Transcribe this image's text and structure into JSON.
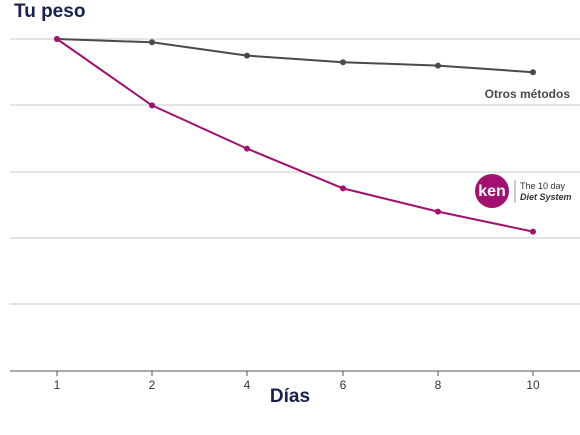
{
  "colors": {
    "title": "#17204f",
    "grid": "#c9c9c9",
    "axis": "#555555",
    "others_series": "#4a4a4a",
    "ken_series": "#a3106f"
  },
  "brand": {
    "logo_text": "ken",
    "line1": "The 10 day",
    "line2": "Diet System"
  },
  "chart_data": {
    "type": "line",
    "title": "Tu peso",
    "xlabel": "Días",
    "ylabel": "",
    "categories": [
      "1",
      "2",
      "4",
      "6",
      "8",
      "10"
    ],
    "ylim": [
      0,
      100
    ],
    "grid": true,
    "series": [
      {
        "name": "Otros métodos",
        "color": "#4a4a4a",
        "values": [
          100,
          99,
          95,
          93,
          92,
          90
        ]
      },
      {
        "name": "",
        "color": "#a3106f",
        "values": [
          100,
          80,
          67,
          55,
          48,
          42
        ]
      }
    ]
  }
}
